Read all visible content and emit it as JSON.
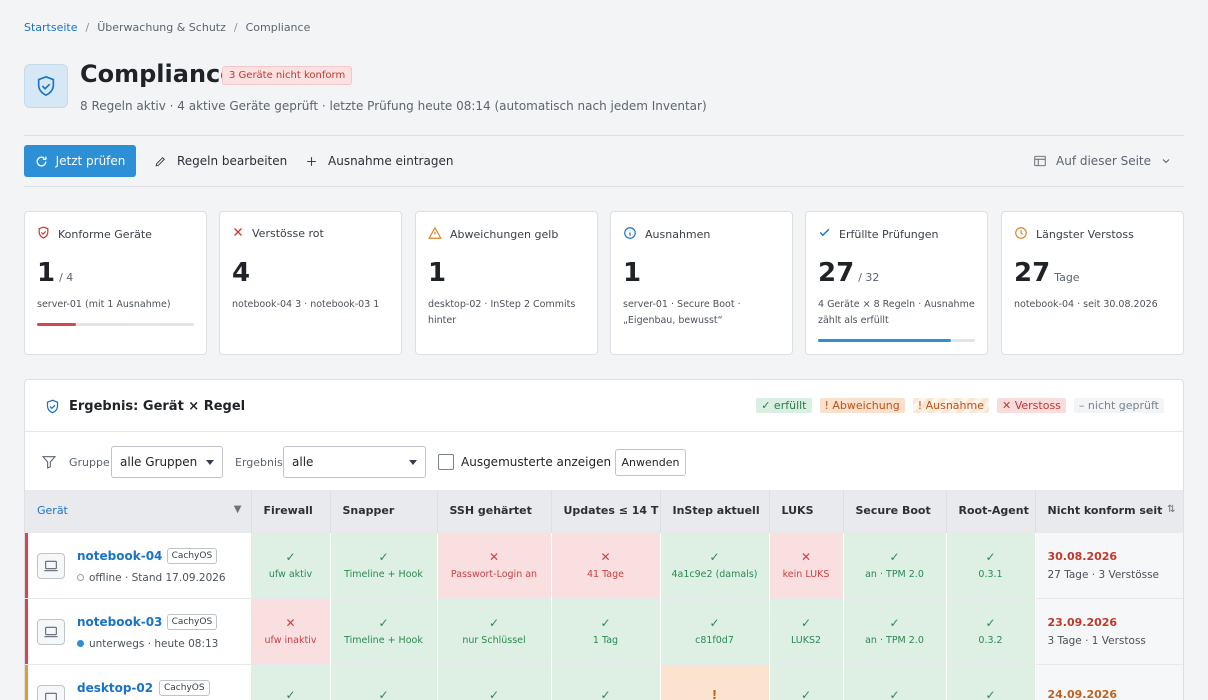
{
  "breadcrumb": [
    "Startseite",
    "Überwachung & Schutz",
    "Compliance"
  ],
  "header": {
    "title": "Compliance",
    "badge": "3 Geräte nicht konform",
    "subtitle": "8 Regeln aktiv · 4 aktive Geräte geprüft · letzte Prüfung heute 08:14 (automatisch nach jedem Inventar)",
    "icon": "shield-check-icon"
  },
  "toolbar": {
    "check_now": "Jetzt prüfen",
    "edit_rules": "Regeln bearbeiten",
    "add_exception": "Ausnahme eintragen",
    "page_view": "Auf dieser Seite"
  },
  "cards": [
    {
      "label": "Konforme Geräte",
      "value": "1",
      "unit": "/ 4",
      "note": "server-01 (mit 1 Ausnahme)",
      "progress": 0.25,
      "bar_color": "#d64550",
      "icon": "shield-icon",
      "icon_color": "#c0392b"
    },
    {
      "label": "Verstösse rot",
      "value": "4",
      "unit": "",
      "note": "notebook-04 3 · notebook-03 1",
      "icon": "x-icon",
      "icon_color": "#c0392b"
    },
    {
      "label": "Abweichungen gelb",
      "value": "1",
      "unit": "",
      "note": "desktop-02 · InStep 2 Commits hinter",
      "icon": "warning-icon",
      "icon_color": "#d9822b"
    },
    {
      "label": "Ausnahmen",
      "value": "1",
      "unit": "",
      "note": "server-01 · Secure Boot · „Eigenbau, bewusst“",
      "icon": "info-icon",
      "icon_color": "#1a73c8"
    },
    {
      "label": "Erfüllte Prüfungen",
      "value": "27",
      "unit": "/ 32",
      "note": "4 Geräte × 8 Regeln · Ausnahme zählt als erfüllt",
      "progress": 0.844,
      "bar_color": "#2d8fd5",
      "icon": "check-icon",
      "icon_color": "#1a73c8"
    },
    {
      "label": "Längster Verstoss",
      "value": "27",
      "unit": "Tage",
      "note": "notebook-04 · seit 30.08.2026",
      "icon": "clock-icon",
      "icon_color": "#d9822b"
    }
  ],
  "panel": {
    "title": "Ergebnis: Gerät × Regel",
    "legend": [
      "✓ erfüllt",
      "! Abweichung",
      "! Ausnahme",
      "✕ Verstoss",
      "– nicht geprüft"
    ]
  },
  "filters": {
    "group_label": "Gruppe",
    "group_value": "alle Gruppen",
    "result_label": "Ergebnis",
    "result_value": "alle",
    "retired_label": "Ausgemusterte anzeigen",
    "retired_checked": false,
    "apply": "Anwenden"
  },
  "table": {
    "columns": [
      "Gerät",
      "Firewall",
      "Snapper",
      "SSH gehärtet",
      "Updates ≤ 14 T",
      "InStep aktuell",
      "LUKS",
      "Secure Boot",
      "Root-Agent",
      "Nicht konform seit"
    ],
    "rows": [
      {
        "name": "notebook-04",
        "os": "CachyOS",
        "status": "offline · Stand 17.09.2026",
        "status_color": "#9aa1a9",
        "dot_hollow": true,
        "accent": "#d64550",
        "cells": [
          {
            "s": "ok",
            "t": "ufw aktiv"
          },
          {
            "s": "ok",
            "t": "Timeline + Hook"
          },
          {
            "s": "bad",
            "t": "Passwort-Login an"
          },
          {
            "s": "bad",
            "t": "41 Tage"
          },
          {
            "s": "ok",
            "t": "4a1c9e2 (damals)"
          },
          {
            "s": "bad",
            "t": "kein LUKS"
          },
          {
            "s": "ok",
            "t": "an · TPM 2.0"
          },
          {
            "s": "ok",
            "t": "0.3.1"
          }
        ],
        "since": "30.08.2026",
        "since_color": "#c0392b",
        "since_note": "27 Tage · 3 Verstösse"
      },
      {
        "name": "notebook-03",
        "os": "CachyOS",
        "status": "unterwegs · heute 08:13",
        "status_color": "#2d8fd5",
        "dot_hollow": false,
        "accent": "#d64550",
        "cells": [
          {
            "s": "bad",
            "t": "ufw inaktiv"
          },
          {
            "s": "ok",
            "t": "Timeline + Hook"
          },
          {
            "s": "ok",
            "t": "nur Schlüssel"
          },
          {
            "s": "ok",
            "t": "1 Tag"
          },
          {
            "s": "ok",
            "t": "c81f0d7"
          },
          {
            "s": "ok",
            "t": "LUKS2"
          },
          {
            "s": "ok",
            "t": "an · TPM 2.0"
          },
          {
            "s": "ok",
            "t": "0.3.2"
          }
        ],
        "since": "23.09.2026",
        "since_color": "#c0392b",
        "since_note": "3 Tage · 1 Verstoss"
      },
      {
        "name": "desktop-02",
        "os": "CachyOS",
        "status": "",
        "status_color": "#2d8fd5",
        "dot_hollow": false,
        "accent": "#e69a33",
        "cells": [
          {
            "s": "ok",
            "t": ""
          },
          {
            "s": "ok",
            "t": ""
          },
          {
            "s": "ok",
            "t": ""
          },
          {
            "s": "ok",
            "t": ""
          },
          {
            "s": "warn",
            "t": ""
          },
          {
            "s": "ok",
            "t": ""
          },
          {
            "s": "ok",
            "t": ""
          },
          {
            "s": "ok",
            "t": ""
          }
        ],
        "since": "24.09.2026",
        "since_color": "#c0621f",
        "since_note": ""
      }
    ]
  }
}
